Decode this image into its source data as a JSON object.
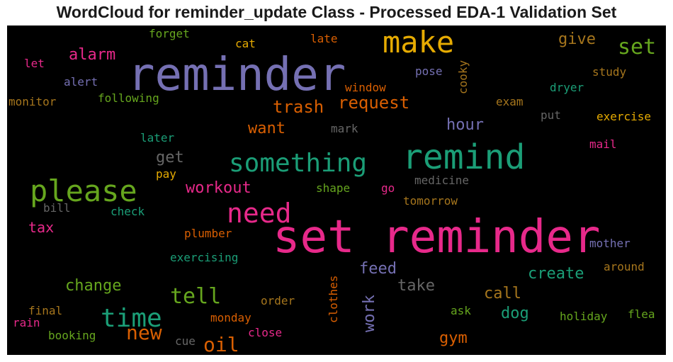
{
  "chart_data": {
    "type": "wordcloud",
    "title": "WordCloud for reminder_update Class - Processed EDA-1 Validation Set",
    "background": "#000000",
    "words": [
      {
        "text": "set reminder",
        "weight": 80,
        "color": "#e7298a"
      },
      {
        "text": "reminder",
        "weight": 74,
        "color": "#7570b3"
      },
      {
        "text": "remind",
        "weight": 54,
        "color": "#1b9e77"
      },
      {
        "text": "make",
        "weight": 50,
        "color": "#e6ab02"
      },
      {
        "text": "please",
        "weight": 48,
        "color": "#66a61e"
      },
      {
        "text": "need",
        "weight": 44,
        "color": "#e7298a"
      },
      {
        "text": "something",
        "weight": 40,
        "color": "#1b9e77"
      },
      {
        "text": "time",
        "weight": 40,
        "color": "#1b9e77"
      },
      {
        "text": "set",
        "weight": 34,
        "color": "#66a61e"
      },
      {
        "text": "tell",
        "weight": 34,
        "color": "#66a61e"
      },
      {
        "text": "new",
        "weight": 32,
        "color": "#d95f02"
      },
      {
        "text": "oil",
        "weight": 32,
        "color": "#d95f02"
      },
      {
        "text": "work",
        "weight": 26,
        "color": "#7570b3"
      },
      {
        "text": "trash",
        "weight": 28,
        "color": "#d95f02"
      },
      {
        "text": "request",
        "weight": 28,
        "color": "#d95f02"
      },
      {
        "text": "give",
        "weight": 26,
        "color": "#a6761d"
      },
      {
        "text": "want",
        "weight": 26,
        "color": "#d95f02"
      },
      {
        "text": "hour",
        "weight": 26,
        "color": "#7570b3"
      },
      {
        "text": "get",
        "weight": 26,
        "color": "#666666"
      },
      {
        "text": "alarm",
        "weight": 24,
        "color": "#e7298a"
      },
      {
        "text": "workout",
        "weight": 24,
        "color": "#e7298a"
      },
      {
        "text": "change",
        "weight": 26,
        "color": "#66a61e"
      },
      {
        "text": "feed",
        "weight": 26,
        "color": "#7570b3"
      },
      {
        "text": "take",
        "weight": 26,
        "color": "#666666"
      },
      {
        "text": "create",
        "weight": 24,
        "color": "#1b9e77"
      },
      {
        "text": "call",
        "weight": 26,
        "color": "#a6761d"
      },
      {
        "text": "dog",
        "weight": 26,
        "color": "#1b9e77"
      },
      {
        "text": "gym",
        "weight": 26,
        "color": "#d95f02"
      },
      {
        "text": "tax",
        "weight": 22,
        "color": "#e7298a"
      },
      {
        "text": "cooky",
        "weight": 18,
        "color": "#a6761d"
      },
      {
        "text": "clothes",
        "weight": 18,
        "color": "#d95f02"
      },
      {
        "text": "window",
        "weight": 18,
        "color": "#d95f02"
      },
      {
        "text": "pose",
        "weight": 18,
        "color": "#7570b3"
      },
      {
        "text": "study",
        "weight": 18,
        "color": "#a6761d"
      },
      {
        "text": "dryer",
        "weight": 18,
        "color": "#1b9e77"
      },
      {
        "text": "exam",
        "weight": 18,
        "color": "#a6761d"
      },
      {
        "text": "exercise",
        "weight": 18,
        "color": "#e6ab02"
      },
      {
        "text": "put",
        "weight": 18,
        "color": "#666666"
      },
      {
        "text": "mail",
        "weight": 18,
        "color": "#e7298a"
      },
      {
        "text": "medicine",
        "weight": 18,
        "color": "#666666"
      },
      {
        "text": "forget",
        "weight": 18,
        "color": "#66a61e"
      },
      {
        "text": "cat",
        "weight": 18,
        "color": "#e6ab02"
      },
      {
        "text": "late",
        "weight": 18,
        "color": "#d95f02"
      },
      {
        "text": "let",
        "weight": 18,
        "color": "#e7298a"
      },
      {
        "text": "alert",
        "weight": 18,
        "color": "#7570b3"
      },
      {
        "text": "monitor",
        "weight": 18,
        "color": "#a6761d"
      },
      {
        "text": "following",
        "weight": 18,
        "color": "#66a61e"
      },
      {
        "text": "mark",
        "weight": 18,
        "color": "#666666"
      },
      {
        "text": "later",
        "weight": 18,
        "color": "#1b9e77"
      },
      {
        "text": "pay",
        "weight": 18,
        "color": "#e6ab02"
      },
      {
        "text": "bill",
        "weight": 18,
        "color": "#666666"
      },
      {
        "text": "check",
        "weight": 18,
        "color": "#1b9e77"
      },
      {
        "text": "shape",
        "weight": 18,
        "color": "#66a61e"
      },
      {
        "text": "go",
        "weight": 18,
        "color": "#e7298a"
      },
      {
        "text": "tomorrow",
        "weight": 18,
        "color": "#a6761d"
      },
      {
        "text": "plumber",
        "weight": 18,
        "color": "#d95f02"
      },
      {
        "text": "mother",
        "weight": 18,
        "color": "#7570b3"
      },
      {
        "text": "exercising",
        "weight": 18,
        "color": "#1b9e77"
      },
      {
        "text": "around",
        "weight": 18,
        "color": "#a6761d"
      },
      {
        "text": "order",
        "weight": 18,
        "color": "#a6761d"
      },
      {
        "text": "final",
        "weight": 18,
        "color": "#a6761d"
      },
      {
        "text": "monday",
        "weight": 18,
        "color": "#d95f02"
      },
      {
        "text": "ask",
        "weight": 18,
        "color": "#66a61e"
      },
      {
        "text": "holiday",
        "weight": 18,
        "color": "#66a61e"
      },
      {
        "text": "flea",
        "weight": 18,
        "color": "#66a61e"
      },
      {
        "text": "rain",
        "weight": 18,
        "color": "#e7298a"
      },
      {
        "text": "booking",
        "weight": 18,
        "color": "#66a61e"
      },
      {
        "text": "close",
        "weight": 18,
        "color": "#e7298a"
      },
      {
        "text": "cue",
        "weight": 18,
        "color": "#666666"
      }
    ]
  }
}
